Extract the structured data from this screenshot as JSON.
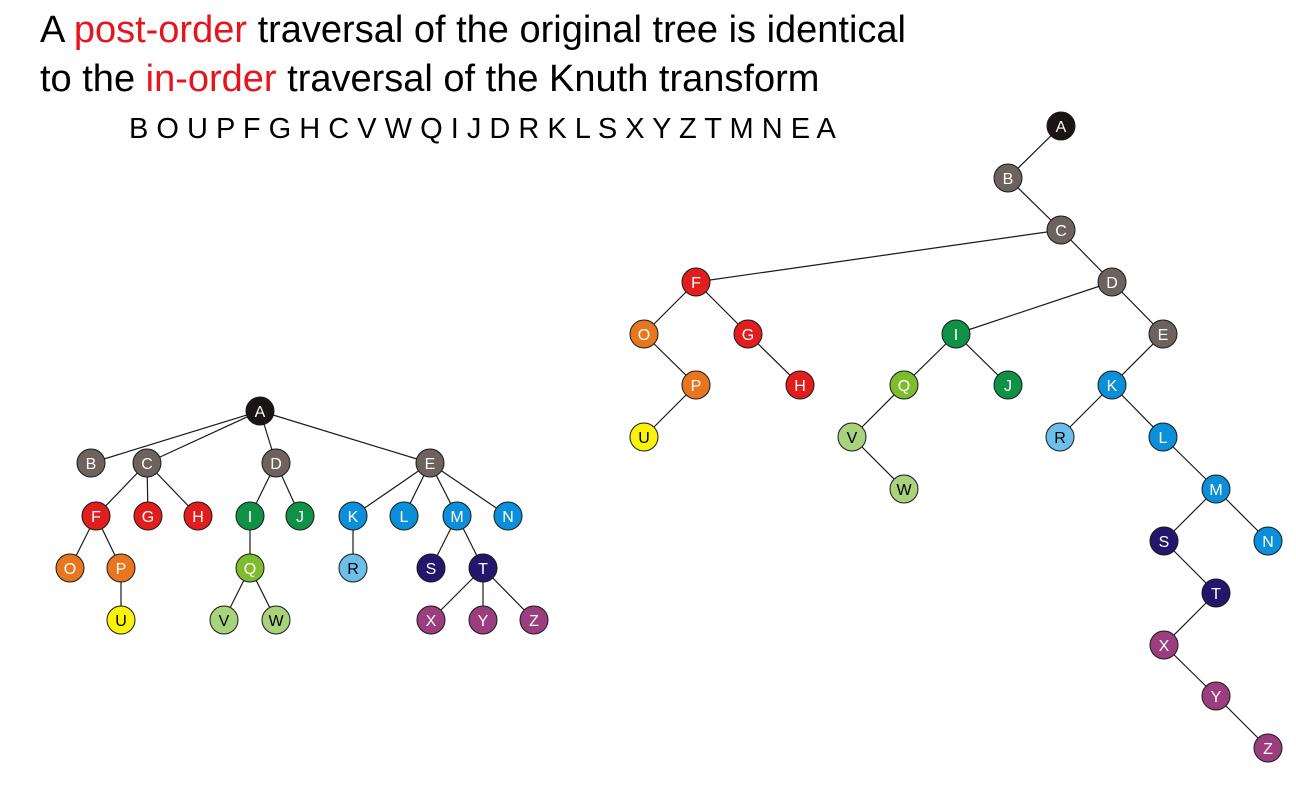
{
  "heading": {
    "line1_pre": "A ",
    "line1_highlight": "post-order",
    "line1_post": " traversal of the original tree is identical",
    "line2_pre": "to the ",
    "line2_highlight": "in-order",
    "line2_post": " traversal of the Knuth transform",
    "highlight_color": "#e8141b"
  },
  "sequence": "B O U P F G H C V W Q I J D R K L S X Y Z T M N E A",
  "colors": {
    "black": "#1b1414",
    "gray": "#6d625d",
    "red": "#e21d1d",
    "orange": "#e8761e",
    "yellow": "#fbf20a",
    "green": "#0f9246",
    "lightgreen": "#7dbd2d",
    "palegreen": "#a8d27c",
    "blue": "#0b8fd8",
    "lightblue": "#6cbfea",
    "navy": "#23166c",
    "purple": "#9b3d7f"
  },
  "original_tree": {
    "nodes": [
      {
        "id": "A",
        "color": "black"
      },
      {
        "id": "B",
        "color": "gray"
      },
      {
        "id": "C",
        "color": "gray"
      },
      {
        "id": "D",
        "color": "gray"
      },
      {
        "id": "E",
        "color": "gray"
      },
      {
        "id": "F",
        "color": "red"
      },
      {
        "id": "G",
        "color": "red"
      },
      {
        "id": "H",
        "color": "red"
      },
      {
        "id": "I",
        "color": "green"
      },
      {
        "id": "J",
        "color": "green"
      },
      {
        "id": "K",
        "color": "blue"
      },
      {
        "id": "L",
        "color": "blue"
      },
      {
        "id": "M",
        "color": "blue"
      },
      {
        "id": "N",
        "color": "blue"
      },
      {
        "id": "O",
        "color": "orange"
      },
      {
        "id": "P",
        "color": "orange"
      },
      {
        "id": "U",
        "color": "yellow"
      },
      {
        "id": "Q",
        "color": "lightgreen"
      },
      {
        "id": "V",
        "color": "palegreen"
      },
      {
        "id": "W",
        "color": "palegreen"
      },
      {
        "id": "R",
        "color": "lightblue"
      },
      {
        "id": "S",
        "color": "navy"
      },
      {
        "id": "T",
        "color": "navy"
      },
      {
        "id": "X",
        "color": "purple"
      },
      {
        "id": "Y",
        "color": "purple"
      },
      {
        "id": "Z",
        "color": "purple"
      }
    ],
    "edges": [
      [
        "A",
        "B"
      ],
      [
        "A",
        "C"
      ],
      [
        "A",
        "D"
      ],
      [
        "A",
        "E"
      ],
      [
        "C",
        "F"
      ],
      [
        "C",
        "G"
      ],
      [
        "C",
        "H"
      ],
      [
        "D",
        "I"
      ],
      [
        "D",
        "J"
      ],
      [
        "E",
        "K"
      ],
      [
        "E",
        "L"
      ],
      [
        "E",
        "M"
      ],
      [
        "E",
        "N"
      ],
      [
        "F",
        "O"
      ],
      [
        "F",
        "P"
      ],
      [
        "P",
        "U"
      ],
      [
        "I",
        "Q"
      ],
      [
        "Q",
        "V"
      ],
      [
        "Q",
        "W"
      ],
      [
        "K",
        "R"
      ],
      [
        "M",
        "S"
      ],
      [
        "M",
        "T"
      ],
      [
        "T",
        "X"
      ],
      [
        "T",
        "Y"
      ],
      [
        "T",
        "Z"
      ]
    ]
  },
  "knuth_transform": {
    "nodes": [
      {
        "id": "A",
        "color": "black"
      },
      {
        "id": "B",
        "color": "gray"
      },
      {
        "id": "C",
        "color": "gray"
      },
      {
        "id": "D",
        "color": "gray"
      },
      {
        "id": "E",
        "color": "gray"
      },
      {
        "id": "F",
        "color": "red"
      },
      {
        "id": "G",
        "color": "red"
      },
      {
        "id": "H",
        "color": "red"
      },
      {
        "id": "O",
        "color": "orange"
      },
      {
        "id": "P",
        "color": "orange"
      },
      {
        "id": "U",
        "color": "yellow"
      },
      {
        "id": "I",
        "color": "green"
      },
      {
        "id": "J",
        "color": "green"
      },
      {
        "id": "Q",
        "color": "lightgreen"
      },
      {
        "id": "V",
        "color": "palegreen"
      },
      {
        "id": "W",
        "color": "palegreen"
      },
      {
        "id": "K",
        "color": "blue"
      },
      {
        "id": "L",
        "color": "blue"
      },
      {
        "id": "M",
        "color": "blue"
      },
      {
        "id": "N",
        "color": "blue"
      },
      {
        "id": "R",
        "color": "lightblue"
      },
      {
        "id": "S",
        "color": "navy"
      },
      {
        "id": "T",
        "color": "navy"
      },
      {
        "id": "X",
        "color": "purple"
      },
      {
        "id": "Y",
        "color": "purple"
      },
      {
        "id": "Z",
        "color": "purple"
      }
    ],
    "edges": [
      [
        "A",
        "B"
      ],
      [
        "B",
        "C"
      ],
      [
        "C",
        "F"
      ],
      [
        "C",
        "D"
      ],
      [
        "F",
        "O"
      ],
      [
        "F",
        "G"
      ],
      [
        "O",
        "P"
      ],
      [
        "P",
        "U"
      ],
      [
        "G",
        "H"
      ],
      [
        "D",
        "I"
      ],
      [
        "D",
        "E"
      ],
      [
        "I",
        "Q"
      ],
      [
        "I",
        "J"
      ],
      [
        "Q",
        "V"
      ],
      [
        "V",
        "W"
      ],
      [
        "E",
        "K"
      ],
      [
        "K",
        "R"
      ],
      [
        "K",
        "L"
      ],
      [
        "L",
        "M"
      ],
      [
        "M",
        "S"
      ],
      [
        "M",
        "N"
      ],
      [
        "S",
        "T"
      ],
      [
        "T",
        "X"
      ],
      [
        "X",
        "Y"
      ],
      [
        "Y",
        "Z"
      ]
    ]
  }
}
